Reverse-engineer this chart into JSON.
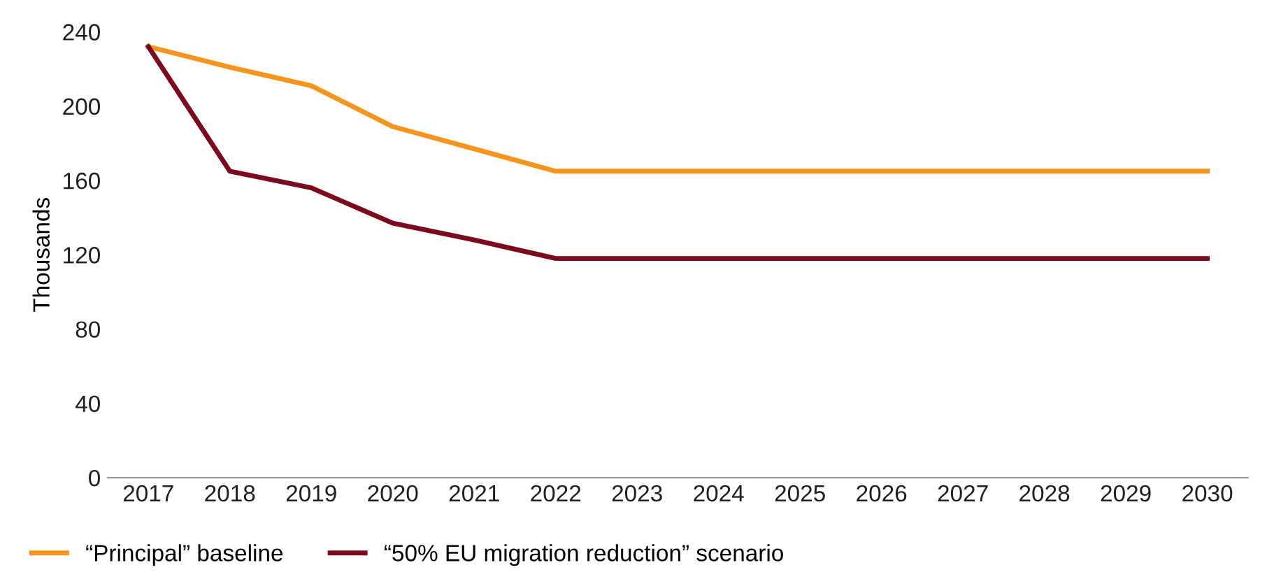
{
  "chart_data": {
    "type": "line",
    "ylabel": "Thousands",
    "categories": [
      "2017",
      "2018",
      "2019",
      "2020",
      "2021",
      "2022",
      "2023",
      "2024",
      "2025",
      "2026",
      "2027",
      "2028",
      "2029",
      "2030"
    ],
    "series": [
      {
        "name": "“Principal” baseline",
        "color": "#f7941d",
        "values": [
          232,
          221,
          211,
          189,
          177,
          165,
          165,
          165,
          165,
          165,
          165,
          165,
          165,
          165
        ]
      },
      {
        "name": "“50% EU migration reduction” scenario",
        "color": "#7b0a1e",
        "values": [
          232,
          165,
          156,
          137,
          128,
          118,
          118,
          118,
          118,
          118,
          118,
          118,
          118,
          118
        ]
      }
    ],
    "ylim": [
      0,
      240
    ],
    "yticks": [
      0,
      40,
      80,
      120,
      160,
      200,
      240
    ],
    "grid": false,
    "legend": "bottom left",
    "marker": "none",
    "line_style": "solid"
  }
}
